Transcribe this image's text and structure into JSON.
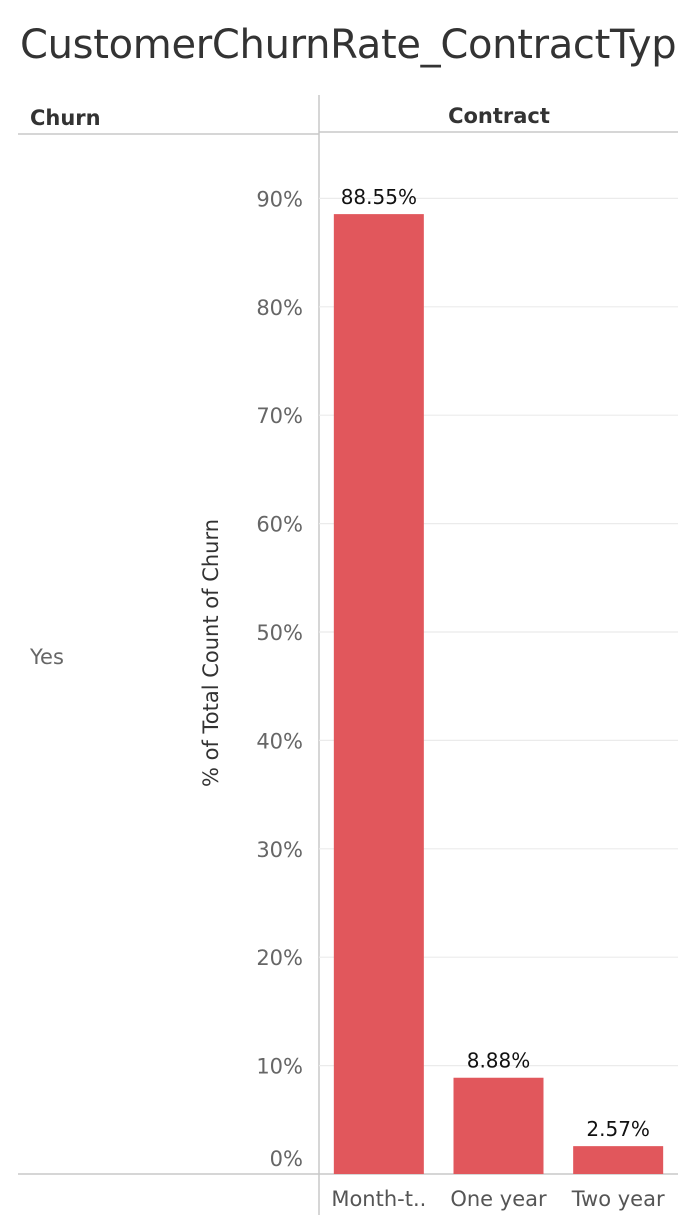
{
  "title": "CustomerChurnRate_ContractType",
  "headers": {
    "row": "Churn",
    "column": "Contract"
  },
  "row_label": "Yes",
  "chart_data": {
    "type": "bar",
    "title": "CustomerChurnRate_ContractType",
    "xlabel": "Contract",
    "ylabel": "% of Total Count of Churn",
    "categories": [
      "Month-t..",
      "One year",
      "Two year"
    ],
    "values": [
      88.55,
      8.88,
      2.57
    ],
    "data_labels": [
      "88.55%",
      "8.88%",
      "2.57%"
    ],
    "yticks": [
      "0%",
      "10%",
      "20%",
      "30%",
      "40%",
      "50%",
      "60%",
      "70%",
      "80%",
      "90%"
    ],
    "ylim": [
      0,
      95
    ],
    "grid": true,
    "legend": "none",
    "colors": {
      "bar": "#E1575C",
      "grid": "#EBEBEB",
      "axis": "#C8C8C8"
    }
  }
}
